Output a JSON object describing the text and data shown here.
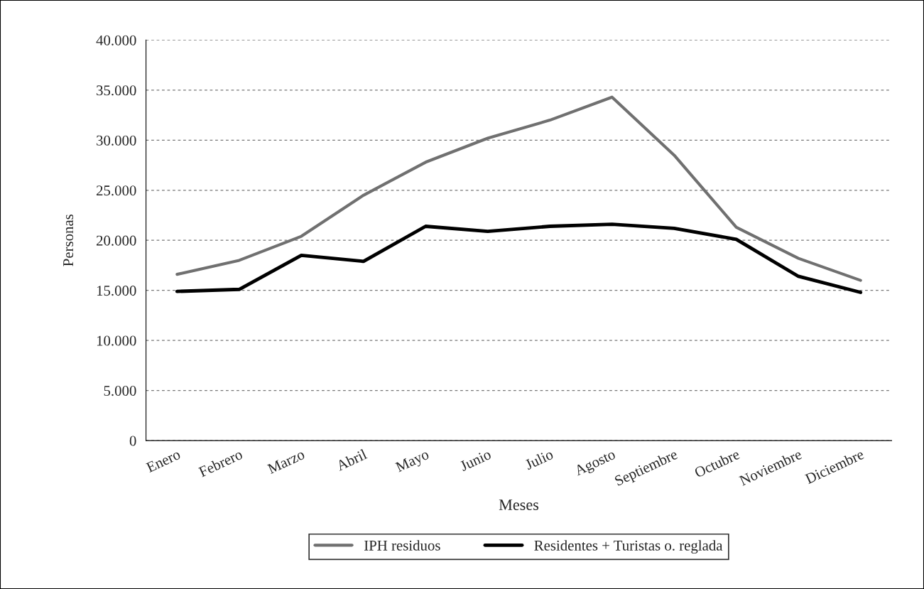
{
  "chart_data": {
    "type": "line",
    "xlabel": "Meses",
    "ylabel": "Personas",
    "categories": [
      "Enero",
      "Febrero",
      "Marzo",
      "Abril",
      "Mayo",
      "Junio",
      "Julio",
      "Agosto",
      "Septiembre",
      "Octubre",
      "Noviembre",
      "Diciembre"
    ],
    "series": [
      {
        "name": "IPH residuos",
        "color": "#707070",
        "values": [
          16600,
          18000,
          20400,
          24500,
          27800,
          30200,
          32000,
          34300,
          28500,
          21300,
          18200,
          16000
        ]
      },
      {
        "name": "Residentes + Turistas o. reglada",
        "color": "#000000",
        "values": [
          14900,
          15100,
          18500,
          17900,
          21400,
          20900,
          21400,
          21600,
          21200,
          20100,
          16400,
          14800
        ]
      }
    ],
    "ylim": [
      0,
      40000
    ],
    "yticks": [
      {
        "value": 0,
        "label": "0"
      },
      {
        "value": 5000,
        "label": "5.000"
      },
      {
        "value": 10000,
        "label": "10.000"
      },
      {
        "value": 15000,
        "label": "15.000"
      },
      {
        "value": 20000,
        "label": "20.000"
      },
      {
        "value": 25000,
        "label": "25.000"
      },
      {
        "value": 30000,
        "label": "30.000"
      },
      {
        "value": 35000,
        "label": "35.000"
      },
      {
        "value": 40000,
        "label": "40.000"
      }
    ],
    "grid": "y",
    "legend": "bottom",
    "marker": "none",
    "line_style": "solid"
  }
}
